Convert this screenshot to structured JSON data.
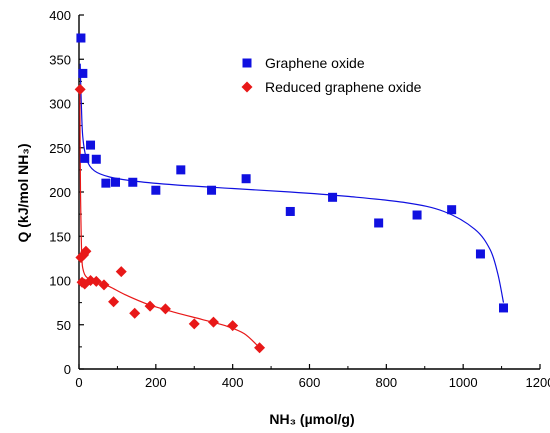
{
  "chart_data": {
    "type": "scatter",
    "xlabel": "NH₃ (µmol/g)",
    "ylabel": "Q (kJ/mol NH₃)",
    "xlim": [
      0,
      1200
    ],
    "ylim": [
      0,
      400
    ],
    "xticks": [
      "0",
      "200",
      "400",
      "600",
      "800",
      "1000",
      "1200"
    ],
    "yticks": [
      "0",
      "50",
      "100",
      "150",
      "200",
      "250",
      "300",
      "350",
      "400"
    ],
    "grid": false,
    "legend_position": "top-right",
    "series": [
      {
        "name": "Graphene oxide",
        "marker": "square",
        "color": "#1010e0",
        "points": [
          [
            5,
            374
          ],
          [
            10,
            334
          ],
          [
            15,
            238
          ],
          [
            30,
            253
          ],
          [
            45,
            237
          ],
          [
            70,
            210
          ],
          [
            95,
            211
          ],
          [
            140,
            211
          ],
          [
            200,
            202
          ],
          [
            265,
            225
          ],
          [
            345,
            202
          ],
          [
            435,
            215
          ],
          [
            550,
            178
          ],
          [
            660,
            194
          ],
          [
            780,
            165
          ],
          [
            880,
            174
          ],
          [
            970,
            180
          ],
          [
            1045,
            130
          ],
          [
            1105,
            69
          ]
        ],
        "fit": [
          [
            3,
            345
          ],
          [
            6,
            300
          ],
          [
            10,
            262
          ],
          [
            20,
            237
          ],
          [
            40,
            224
          ],
          [
            80,
            217
          ],
          [
            150,
            212
          ],
          [
            250,
            208
          ],
          [
            400,
            204
          ],
          [
            550,
            200
          ],
          [
            700,
            195
          ],
          [
            850,
            188
          ],
          [
            950,
            178
          ],
          [
            1030,
            158
          ],
          [
            1070,
            135
          ],
          [
            1090,
            108
          ],
          [
            1105,
            75
          ]
        ]
      },
      {
        "name": "Reduced graphene oxide",
        "marker": "diamond",
        "color": "#e81818",
        "points": [
          [
            3,
            316
          ],
          [
            5,
            126
          ],
          [
            12,
            129
          ],
          [
            18,
            133
          ],
          [
            8,
            98
          ],
          [
            15,
            96
          ],
          [
            30,
            100
          ],
          [
            45,
            99
          ],
          [
            65,
            95
          ],
          [
            90,
            76
          ],
          [
            110,
            110
          ],
          [
            145,
            63
          ],
          [
            185,
            71
          ],
          [
            225,
            68
          ],
          [
            300,
            51
          ],
          [
            350,
            53
          ],
          [
            400,
            49
          ],
          [
            470,
            24
          ]
        ],
        "fit": [
          [
            2,
            316
          ],
          [
            4,
            200
          ],
          [
            7,
            130
          ],
          [
            12,
            110
          ],
          [
            25,
            102
          ],
          [
            50,
            98
          ],
          [
            80,
            93
          ],
          [
            120,
            84
          ],
          [
            180,
            73
          ],
          [
            250,
            64
          ],
          [
            320,
            56
          ],
          [
            380,
            49
          ],
          [
            430,
            40
          ],
          [
            470,
            24
          ]
        ]
      }
    ]
  }
}
